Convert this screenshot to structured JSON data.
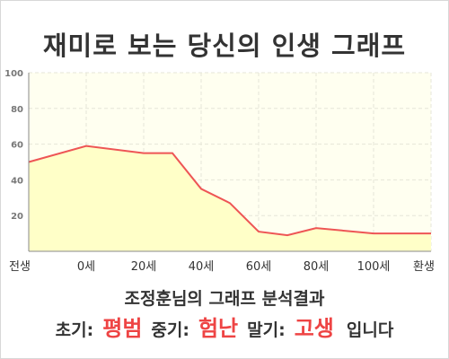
{
  "title": "재미로 보는 당신의 인생 그래프",
  "summary": {
    "heading": "조정훈님의 그래프 분석결과",
    "early_label": "초기:",
    "early_value": "평범",
    "mid_label": "중기:",
    "mid_value": "험난",
    "late_label": "말기:",
    "late_value": "고생",
    "suffix": "입니다"
  },
  "colors": {
    "line": "#ee5555",
    "fill": "#ffffc8",
    "plot_bg": "#fffff0",
    "grid": "#e6e6d8",
    "axis": "#888888",
    "accent": "#ee4444"
  },
  "chart_data": {
    "type": "area",
    "title": "재미로 보는 당신의 인생 그래프",
    "xlabel": "",
    "ylabel": "",
    "x_ticks": [
      "전생",
      "0세",
      "20세",
      "40세",
      "60세",
      "80세",
      "100세",
      "환생"
    ],
    "y_ticks": [
      20,
      40,
      60,
      80,
      100
    ],
    "ylim": [
      0,
      100
    ],
    "grid": true,
    "legend": "none",
    "series": [
      {
        "x": [
          -20,
          0,
          20,
          30,
          40,
          50,
          60,
          70,
          80,
          100,
          120
        ],
        "y": [
          50,
          59,
          55,
          55,
          35,
          27,
          11,
          9,
          13,
          10,
          10
        ]
      }
    ]
  }
}
